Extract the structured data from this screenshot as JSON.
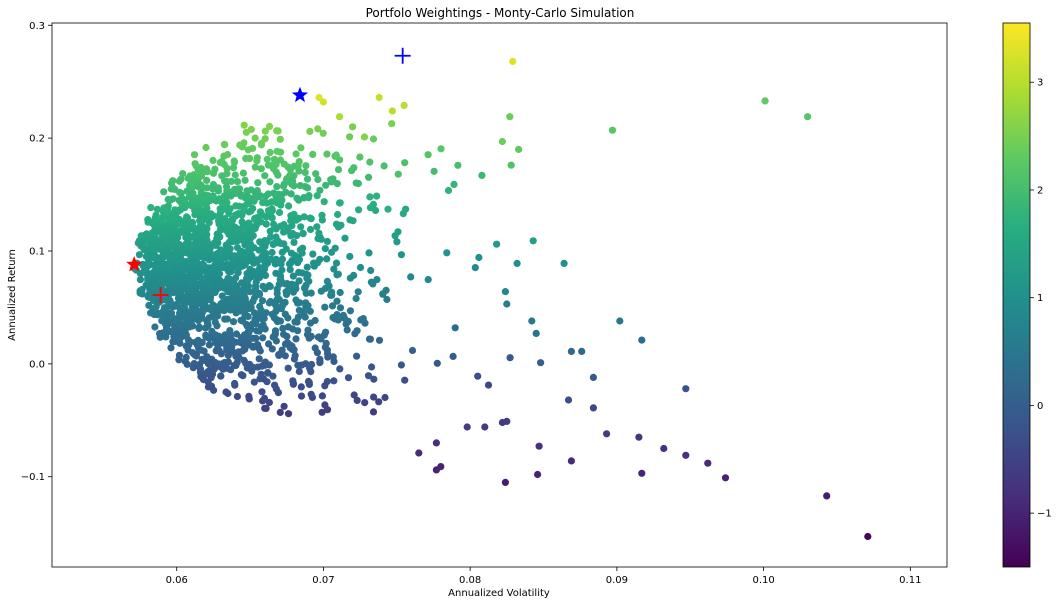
{
  "chart_data": {
    "type": "scatter",
    "title": "Portfolo Weightings - Monty-Carlo Simulation",
    "xlabel": "Annualized Volatility",
    "ylabel": "Annualized Return",
    "xlim": [
      0.0515,
      0.1125
    ],
    "ylim": [
      -0.18,
      0.302
    ],
    "xticks": [
      "0.06",
      "0.07",
      "0.08",
      "0.09",
      "0.10",
      "0.11"
    ],
    "xtick_values": [
      0.06,
      0.07,
      0.08,
      0.09,
      0.1,
      0.11
    ],
    "yticks": [
      "−0.1",
      "0.0",
      "0.1",
      "0.2",
      "0.3"
    ],
    "ytick_values": [
      -0.1,
      0.0,
      0.1,
      0.2,
      0.3
    ],
    "colorbar": {
      "colormap": "viridis",
      "range": [
        -1.5,
        3.55
      ],
      "ticks": [
        "−1",
        "0",
        "1",
        "2",
        "3"
      ],
      "tick_values": [
        -1,
        0,
        1,
        2,
        3
      ]
    },
    "grid": false,
    "legend": "none",
    "dense_cloud_estimate": {
      "description": "roughly 2000 simulated portfolios concentrated in this region",
      "volatility_range": [
        0.058,
        0.072
      ],
      "return_range": [
        -0.04,
        0.21
      ]
    },
    "outlier_points": [
      {
        "x": 0.0829,
        "y": 0.268,
        "c": 3.3
      },
      {
        "x": 0.1001,
        "y": 0.233,
        "c": 2.3
      },
      {
        "x": 0.103,
        "y": 0.219,
        "c": 2.2
      },
      {
        "x": 0.0897,
        "y": 0.207,
        "c": 2.2
      },
      {
        "x": 0.0827,
        "y": 0.219,
        "c": 2.4
      },
      {
        "x": 0.0822,
        "y": 0.197,
        "c": 2.4
      },
      {
        "x": 0.0833,
        "y": 0.19,
        "c": 2.3
      },
      {
        "x": 0.0828,
        "y": 0.176,
        "c": 2.1
      },
      {
        "x": 0.0808,
        "y": 0.167,
        "c": 1.9
      },
      {
        "x": 0.0789,
        "y": 0.159,
        "c": 1.8
      },
      {
        "x": 0.0818,
        "y": 0.106,
        "c": 1.2
      },
      {
        "x": 0.0843,
        "y": 0.109,
        "c": 1.3
      },
      {
        "x": 0.0864,
        "y": 0.089,
        "c": 1.0
      },
      {
        "x": 0.0832,
        "y": 0.089,
        "c": 1.0
      },
      {
        "x": 0.0902,
        "y": 0.038,
        "c": 0.5
      },
      {
        "x": 0.0917,
        "y": 0.021,
        "c": 0.3
      },
      {
        "x": 0.0869,
        "y": 0.011,
        "c": 0.2
      },
      {
        "x": 0.0876,
        "y": 0.011,
        "c": 0.2
      },
      {
        "x": 0.0848,
        "y": 0.001,
        "c": 0.0
      },
      {
        "x": 0.0884,
        "y": -0.012,
        "c": -0.1
      },
      {
        "x": 0.0947,
        "y": -0.022,
        "c": -0.2
      },
      {
        "x": 0.0867,
        "y": -0.032,
        "c": -0.3
      },
      {
        "x": 0.0884,
        "y": -0.039,
        "c": -0.4
      },
      {
        "x": 0.0893,
        "y": -0.062,
        "c": -0.6
      },
      {
        "x": 0.0915,
        "y": -0.065,
        "c": -0.7
      },
      {
        "x": 0.0932,
        "y": -0.075,
        "c": -0.8
      },
      {
        "x": 0.0947,
        "y": -0.081,
        "c": -0.8
      },
      {
        "x": 0.0962,
        "y": -0.088,
        "c": -0.9
      },
      {
        "x": 0.0847,
        "y": -0.073,
        "c": -0.8
      },
      {
        "x": 0.0869,
        "y": -0.086,
        "c": -0.9
      },
      {
        "x": 0.0917,
        "y": -0.097,
        "c": -1.0
      },
      {
        "x": 0.0974,
        "y": -0.101,
        "c": -1.0
      },
      {
        "x": 0.0846,
        "y": -0.098,
        "c": -1.0
      },
      {
        "x": 0.0824,
        "y": -0.105,
        "c": -1.1
      },
      {
        "x": 0.1043,
        "y": -0.117,
        "c": -1.1
      },
      {
        "x": 0.1071,
        "y": -0.153,
        "c": -1.4
      },
      {
        "x": 0.078,
        "y": -0.091,
        "c": -1.0
      },
      {
        "x": 0.0777,
        "y": -0.094,
        "c": -1.0
      },
      {
        "x": 0.0765,
        "y": -0.079,
        "c": -0.9
      },
      {
        "x": 0.0777,
        "y": -0.07,
        "c": -0.8
      },
      {
        "x": 0.081,
        "y": -0.056,
        "c": -0.6
      },
      {
        "x": 0.0798,
        "y": -0.056,
        "c": -0.6
      },
      {
        "x": 0.0822,
        "y": -0.052,
        "c": -0.6
      },
      {
        "x": 0.0825,
        "y": -0.051,
        "c": -0.6
      },
      {
        "x": 0.0842,
        "y": 0.038,
        "c": 0.5
      },
      {
        "x": 0.0845,
        "y": 0.027,
        "c": 0.4
      },
      {
        "x": 0.0825,
        "y": 0.053,
        "c": 0.6
      },
      {
        "x": 0.0824,
        "y": 0.064,
        "c": 0.8
      },
      {
        "x": 0.0755,
        "y": 0.229,
        "c": 3.0
      },
      {
        "x": 0.0738,
        "y": 0.236,
        "c": 3.1
      },
      {
        "x": 0.0747,
        "y": 0.224,
        "c": 3.0
      },
      {
        "x": 0.0697,
        "y": 0.236,
        "c": 3.3
      },
      {
        "x": 0.0751,
        "y": 0.168,
        "c": 2.1
      },
      {
        "x": 0.0744,
        "y": 0.137,
        "c": 1.7
      },
      {
        "x": 0.07,
        "y": 0.232,
        "c": 3.2
      },
      {
        "x": 0.0728,
        "y": 0.201,
        "c": 2.6
      },
      {
        "x": 0.0711,
        "y": 0.219,
        "c": 2.9
      }
    ],
    "markers": [
      {
        "shape": "star",
        "color": "#0000ff",
        "x": 0.0684,
        "y": 0.238
      },
      {
        "shape": "star",
        "color": "#ff0000",
        "x": 0.0571,
        "y": 0.088
      },
      {
        "shape": "plus",
        "color": "#0000ff",
        "x": 0.0754,
        "y": 0.273
      },
      {
        "shape": "plus",
        "color": "#ff0000",
        "x": 0.0589,
        "y": 0.061
      }
    ]
  }
}
